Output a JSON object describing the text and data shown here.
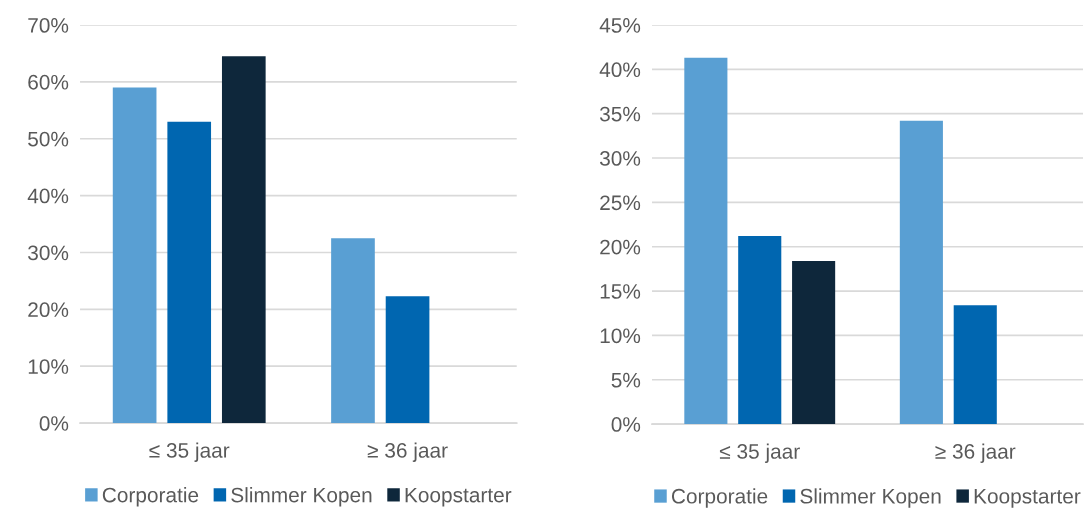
{
  "chart_data": [
    {
      "type": "bar",
      "categories": [
        "≤ 35 jaar",
        "≥ 36 jaar"
      ],
      "series": [
        {
          "name": "Corporatie",
          "color": "#599fd3",
          "values": [
            59,
            32.5
          ]
        },
        {
          "name": "Slimmer Kopen",
          "color": "#0066b0",
          "values": [
            53,
            22.3
          ]
        },
        {
          "name": "Koopstarter",
          "color": "#0e273b",
          "values": [
            64.5,
            null
          ]
        }
      ],
      "ylim": [
        0,
        70
      ],
      "yticks": [
        {
          "value": 0,
          "label": "0%"
        },
        {
          "value": 10,
          "label": "10%"
        },
        {
          "value": 20,
          "label": "20%"
        },
        {
          "value": 30,
          "label": "30%"
        },
        {
          "value": 40,
          "label": "40%"
        },
        {
          "value": 50,
          "label": "50%"
        },
        {
          "value": 60,
          "label": "60%"
        },
        {
          "value": 70,
          "label": "70%"
        }
      ],
      "grid": "y",
      "legend": "bottom"
    },
    {
      "type": "bar",
      "categories": [
        "≤ 35 jaar",
        "≥ 36 jaar"
      ],
      "series": [
        {
          "name": "Corporatie",
          "color": "#599fd3",
          "values": [
            41.3,
            34.2
          ]
        },
        {
          "name": "Slimmer Kopen",
          "color": "#0066b0",
          "values": [
            21.2,
            13.4
          ]
        },
        {
          "name": "Koopstarter",
          "color": "#0e273b",
          "values": [
            18.4,
            null
          ]
        }
      ],
      "ylim": [
        0,
        45
      ],
      "yticks": [
        {
          "value": 0,
          "label": "0%"
        },
        {
          "value": 5,
          "label": "5%"
        },
        {
          "value": 10,
          "label": "10%"
        },
        {
          "value": 15,
          "label": "15%"
        },
        {
          "value": 20,
          "label": "20%"
        },
        {
          "value": 25,
          "label": "25%"
        },
        {
          "value": 30,
          "label": "30%"
        },
        {
          "value": 35,
          "label": "35%"
        },
        {
          "value": 40,
          "label": "40%"
        },
        {
          "value": 45,
          "label": "45%"
        }
      ],
      "grid": "y",
      "legend": "bottom"
    }
  ]
}
